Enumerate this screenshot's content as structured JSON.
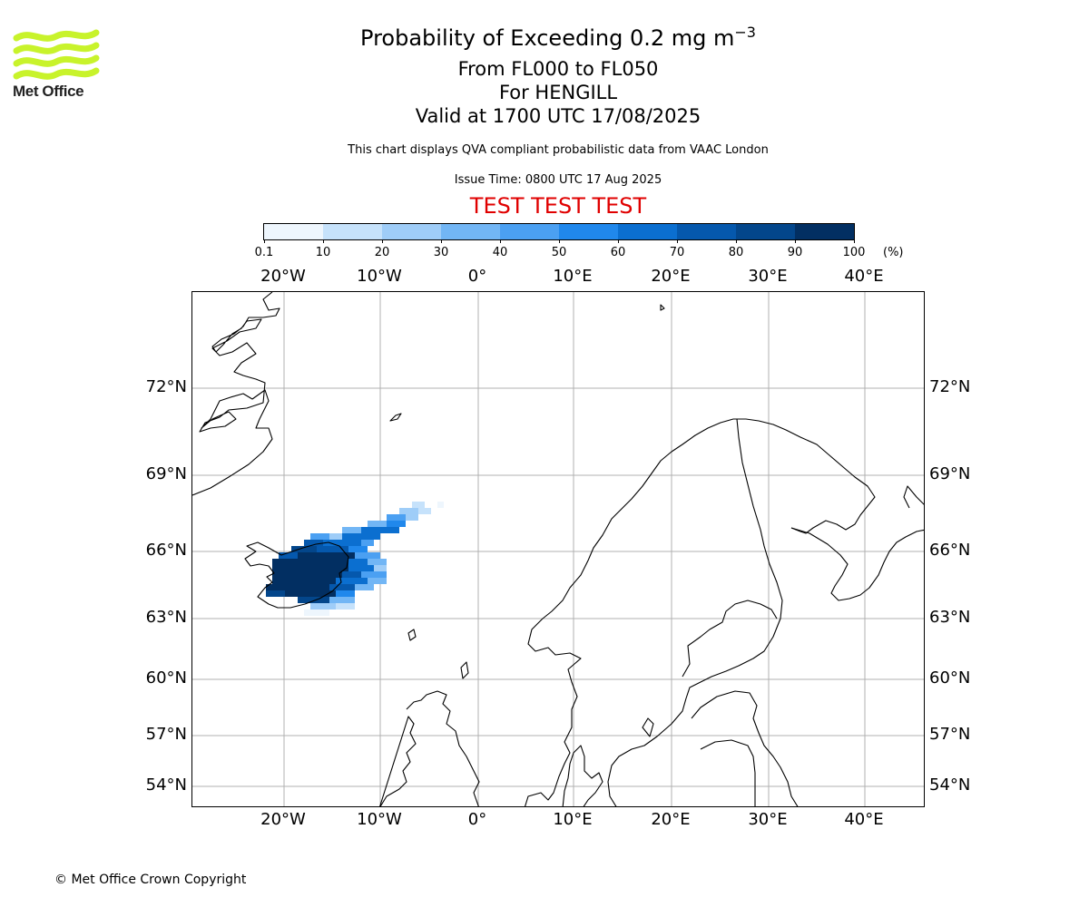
{
  "logo": {
    "text": "Met Office",
    "color": "#c8f32b"
  },
  "header": {
    "title": "Probability of Exceeding 0.2 mg m",
    "title_superscript": "−3",
    "levels": "From FL000 to FL050",
    "location": "For HENGILL",
    "valid": "Valid at 1700 UTC 17/08/2025",
    "description": "This chart displays QVA compliant probabilistic data from VAAC London",
    "issue": "Issue Time: 0800 UTC 17 Aug 2025",
    "test_banner": "TEST TEST TEST",
    "test_color": "#e00000"
  },
  "colorbar": {
    "ticks": [
      "0.1",
      "10",
      "20",
      "30",
      "40",
      "50",
      "60",
      "70",
      "80",
      "90",
      "100"
    ],
    "unit": "(%)",
    "colors": [
      "#eef6fd",
      "#c6e2fb",
      "#9fcdf8",
      "#72b6f5",
      "#4ba0f2",
      "#2088ec",
      "#0b6fd0",
      "#0558ad",
      "#03468b",
      "#022f62"
    ]
  },
  "map": {
    "longitude_labels": [
      "20°W",
      "10°W",
      "0°",
      "10°E",
      "20°E",
      "30°E",
      "40°E"
    ],
    "latitude_labels": [
      "72°N",
      "69°N",
      "66°N",
      "63°N",
      "60°N",
      "57°N",
      "54°N"
    ],
    "gridline_color": "#b0b0b0"
  },
  "footer": {
    "copyright": "© Met Office Crown Copyright"
  }
}
